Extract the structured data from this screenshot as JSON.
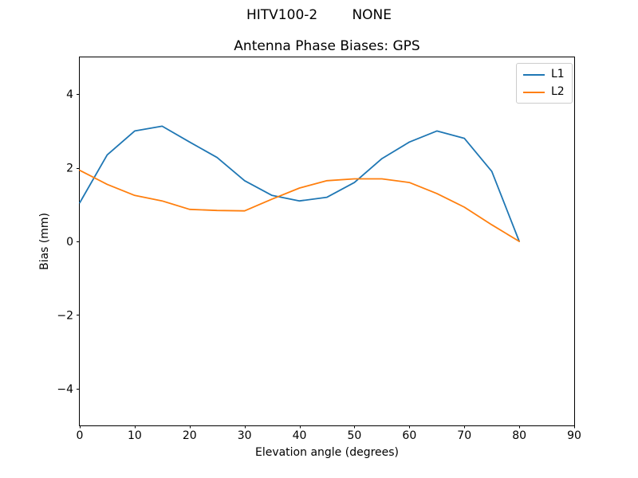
{
  "figure": {
    "suptitle": "HITV100-2        NONE",
    "background": "#ffffff"
  },
  "chart_data": {
    "type": "line",
    "title": "Antenna Phase Biases: GPS",
    "xlabel": "Elevation angle (degrees)",
    "ylabel": "Bias (mm)",
    "xlim": [
      0,
      90
    ],
    "ylim": [
      -5,
      5
    ],
    "xticks": [
      0,
      10,
      20,
      30,
      40,
      50,
      60,
      70,
      80,
      90
    ],
    "yticks": [
      -4,
      -2,
      0,
      2,
      4
    ],
    "grid": false,
    "legend_position": "upper right",
    "x": [
      0,
      5,
      10,
      15,
      20,
      25,
      30,
      35,
      40,
      45,
      50,
      55,
      60,
      65,
      70,
      75,
      80
    ],
    "series": [
      {
        "name": "L1",
        "color": "#1f77b4",
        "values": [
          1.05,
          2.35,
          3.0,
          3.13,
          2.7,
          2.28,
          1.65,
          1.25,
          1.1,
          1.2,
          1.6,
          2.25,
          2.7,
          3.0,
          2.8,
          1.9,
          0.0
        ]
      },
      {
        "name": "L2",
        "color": "#ff7f0e",
        "values": [
          1.93,
          1.55,
          1.25,
          1.1,
          0.87,
          0.84,
          0.83,
          1.15,
          1.45,
          1.65,
          1.7,
          1.7,
          1.6,
          1.3,
          0.93,
          0.45,
          0.0
        ]
      }
    ]
  }
}
